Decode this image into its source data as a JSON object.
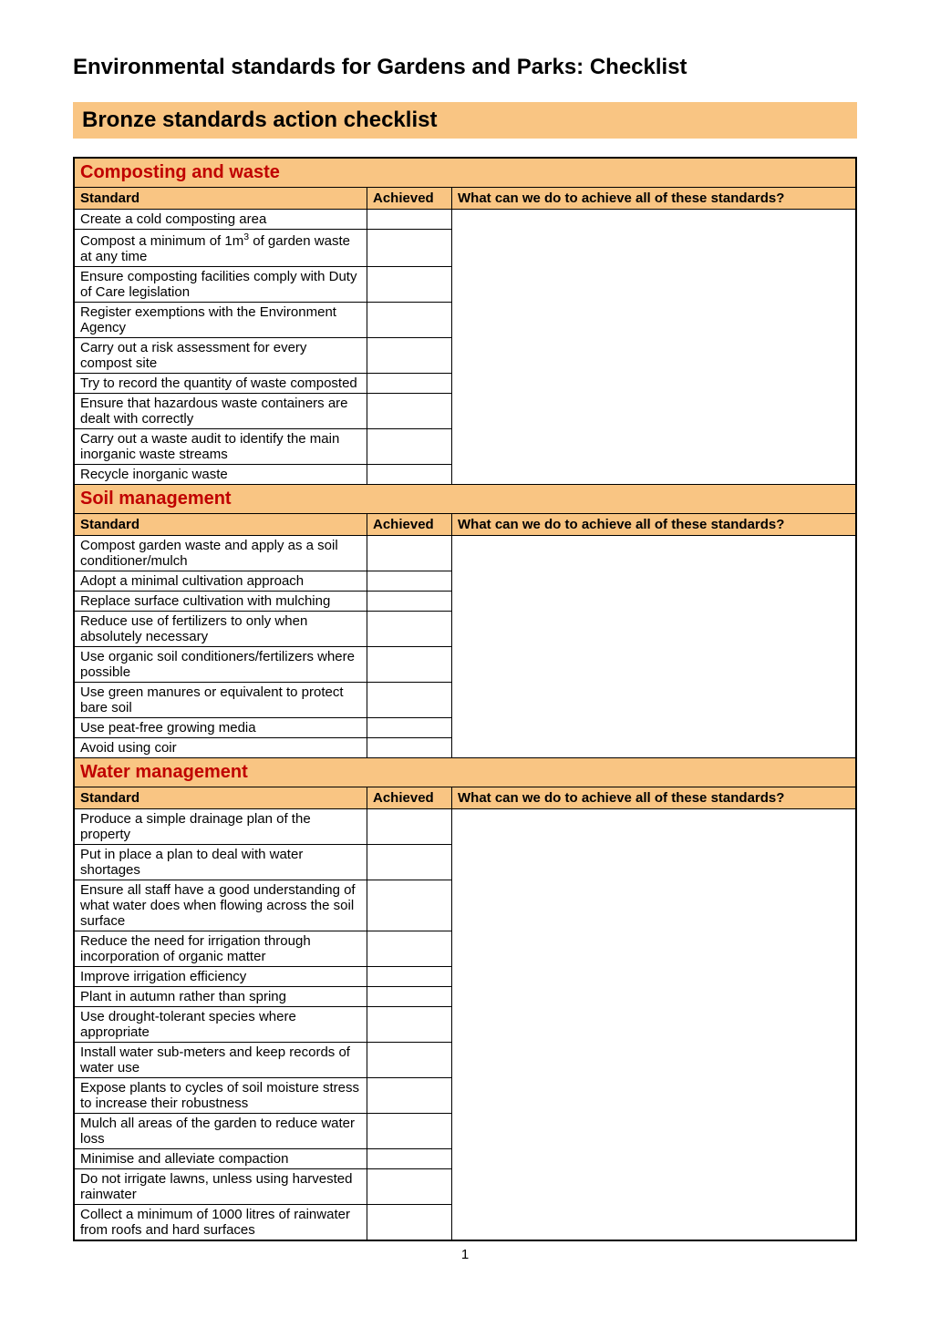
{
  "page": {
    "title": "Environmental standards for Gardens and Parks: Checklist",
    "checklist_title": "Bronze standards action checklist",
    "page_number": "1"
  },
  "colors": {
    "section_bg": "#f9c583",
    "section_text": "#c00000",
    "header_bg": "#f9c583",
    "border": "#000000",
    "body_bg": "#ffffff"
  },
  "columns": {
    "standard": "Standard",
    "achieved": "Achieved",
    "notes": "What can we do to achieve all of these standards?"
  },
  "sections": [
    {
      "title": "Composting and waste",
      "rows": [
        "Create a cold composting area",
        "Compost a minimum of 1m³ of garden waste at any time",
        "Ensure composting facilities comply with Duty of Care legislation",
        "Register exemptions with the Environment Agency",
        "Carry out a risk assessment for every compost site",
        "Try to record the quantity of waste composted",
        "Ensure that hazardous waste containers are dealt with correctly",
        "Carry out a waste audit to identify the main inorganic waste streams",
        "Recycle inorganic waste"
      ]
    },
    {
      "title": "Soil management",
      "rows": [
        "Compost garden waste and apply as a soil conditioner/mulch",
        "Adopt a minimal cultivation approach",
        "Replace surface cultivation with mulching",
        "Reduce use of fertilizers to only when absolutely necessary",
        "Use organic soil conditioners/fertilizers where possible",
        "Use green manures or equivalent to protect bare soil",
        "Use peat-free growing media",
        "Avoid using coir"
      ]
    },
    {
      "title": "Water management",
      "rows": [
        "Produce a simple drainage plan of the property",
        "Put in place a plan to deal with water shortages",
        "Ensure all staff have a good understanding of what water does when flowing across the soil surface",
        "Reduce the need for irrigation through incorporation of organic matter",
        "Improve irrigation efficiency",
        "Plant in autumn rather than spring",
        "Use drought-tolerant species where appropriate",
        "Install water sub-meters and keep records of water use",
        "Expose plants to cycles of soil moisture stress to increase their robustness",
        "Mulch all areas of the garden to reduce water loss",
        "Minimise and alleviate compaction",
        "Do not irrigate lawns, unless using harvested rainwater",
        "Collect a minimum of 1000 litres of rainwater from roofs and hard surfaces"
      ]
    }
  ]
}
